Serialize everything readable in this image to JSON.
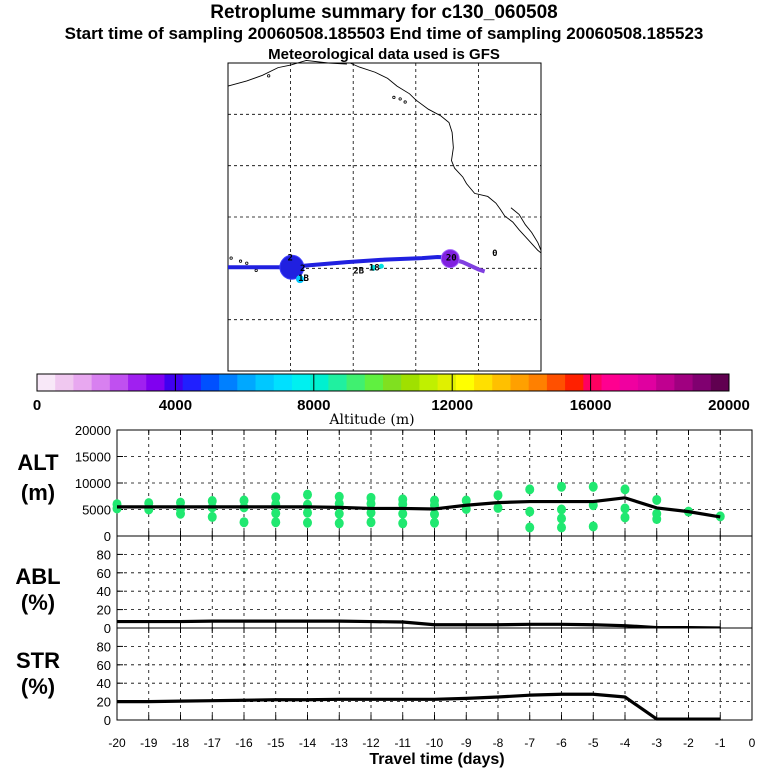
{
  "header": {
    "title": "Retroplume summary for c130_060508",
    "subtitle": "Start time of sampling 20060508.185503     End time of sampling 20060508.185523",
    "met": "Meteorological data used is GFS"
  },
  "colors": {
    "trajectory": "#2020e0",
    "trajectory_end": "#8040e0",
    "dots": "#20e870",
    "line": "#000000",
    "endpoint": "#8020e0"
  },
  "colorbar": {
    "ticks": [
      "0",
      "4000",
      "8000",
      "12000",
      "16000",
      "20000"
    ],
    "tick_values": [
      0,
      4000,
      8000,
      12000,
      16000,
      20000
    ],
    "label": "Altitude (m)",
    "colors": [
      "#f8e8f8",
      "#f0c8f0",
      "#e8a8f0",
      "#d880f0",
      "#c050f0",
      "#a020f0",
      "#8000f0",
      "#4000f0",
      "#2020ff",
      "#0050ff",
      "#0080ff",
      "#00a8ff",
      "#00c8ff",
      "#00e0ff",
      "#00f0f0",
      "#00f0d0",
      "#20f0a0",
      "#40f070",
      "#60f040",
      "#80e020",
      "#a0e000",
      "#c0f000",
      "#e0f000",
      "#ffff00",
      "#ffe000",
      "#ffc000",
      "#ffa000",
      "#ff8000",
      "#ff5000",
      "#ff2000",
      "#ff0060",
      "#ff0090",
      "#f000a0",
      "#e000a0",
      "#c00090",
      "#a00080",
      "#800070",
      "#600050"
    ]
  },
  "map": {
    "labels": [
      {
        "text": "2",
        "lon": -150.5,
        "lat": 21.5
      },
      {
        "text": "2",
        "lon": -148.5,
        "lat": 19.5
      },
      {
        "text": "1B",
        "lon": -148.8,
        "lat": 17.5
      },
      {
        "text": "2B",
        "lon": -140.0,
        "lat": 19.0
      },
      {
        "text": "18",
        "lon": -137.5,
        "lat": 19.6
      },
      {
        "text": "20",
        "lon": -125.2,
        "lat": 21.5
      },
      {
        "text": "0",
        "lon": -117.8,
        "lat": 22.4
      }
    ]
  },
  "chart_data": [
    {
      "type": "line",
      "panel": "ALT",
      "ylabel": "ALT\n(m)",
      "ylabel_lines": [
        "ALT",
        "(m)"
      ],
      "ylim": [
        0,
        20000
      ],
      "yticks": [
        "0",
        "5000",
        "10000",
        "15000",
        "20000"
      ],
      "ytick_values": [
        0,
        5000,
        10000,
        15000,
        20000
      ],
      "x": [
        -20,
        -19,
        -18,
        -17,
        -16,
        -15,
        -14,
        -13,
        -12,
        -11,
        -10,
        -9,
        -8,
        -7,
        -6,
        -5,
        -4,
        -3,
        -2,
        -1
      ],
      "y": [
        5500,
        5500,
        5500,
        5500,
        5500,
        5500,
        5500,
        5400,
        5200,
        5200,
        5100,
        5800,
        6300,
        6500,
        6500,
        6500,
        7200,
        5300,
        4600,
        3600
      ],
      "dots": [
        {
          "x": -20,
          "y": 6000
        },
        {
          "x": -20,
          "y": 5200
        },
        {
          "x": -19,
          "y": 6200
        },
        {
          "x": -19,
          "y": 5000
        },
        {
          "x": -18,
          "y": 6300
        },
        {
          "x": -18,
          "y": 5100
        },
        {
          "x": -18,
          "y": 4200
        },
        {
          "x": -17,
          "y": 6600
        },
        {
          "x": -17,
          "y": 5400
        },
        {
          "x": -17,
          "y": 3600
        },
        {
          "x": -16,
          "y": 6700
        },
        {
          "x": -16,
          "y": 5400
        },
        {
          "x": -16,
          "y": 2600
        },
        {
          "x": -15,
          "y": 7300
        },
        {
          "x": -15,
          "y": 6000
        },
        {
          "x": -15,
          "y": 4300
        },
        {
          "x": -15,
          "y": 2600
        },
        {
          "x": -14,
          "y": 7800
        },
        {
          "x": -14,
          "y": 5900
        },
        {
          "x": -14,
          "y": 4400
        },
        {
          "x": -14,
          "y": 2500
        },
        {
          "x": -13,
          "y": 7400
        },
        {
          "x": -13,
          "y": 6100
        },
        {
          "x": -13,
          "y": 4200
        },
        {
          "x": -13,
          "y": 2400
        },
        {
          "x": -12,
          "y": 7200
        },
        {
          "x": -12,
          "y": 6100
        },
        {
          "x": -12,
          "y": 4400
        },
        {
          "x": -12,
          "y": 2600
        },
        {
          "x": -11,
          "y": 6900
        },
        {
          "x": -11,
          "y": 6000
        },
        {
          "x": -11,
          "y": 4200
        },
        {
          "x": -11,
          "y": 2400
        },
        {
          "x": -10,
          "y": 6700
        },
        {
          "x": -10,
          "y": 5800
        },
        {
          "x": -10,
          "y": 4100
        },
        {
          "x": -10,
          "y": 2500
        },
        {
          "x": -9,
          "y": 6700
        },
        {
          "x": -9,
          "y": 5100
        },
        {
          "x": -8,
          "y": 7700
        },
        {
          "x": -8,
          "y": 5300
        },
        {
          "x": -7,
          "y": 8800
        },
        {
          "x": -7,
          "y": 4600
        },
        {
          "x": -7,
          "y": 1600
        },
        {
          "x": -6,
          "y": 9300
        },
        {
          "x": -6,
          "y": 5000
        },
        {
          "x": -6,
          "y": 3300
        },
        {
          "x": -6,
          "y": 1600
        },
        {
          "x": -5,
          "y": 9300
        },
        {
          "x": -5,
          "y": 5800
        },
        {
          "x": -5,
          "y": 1800
        },
        {
          "x": -4,
          "y": 8800
        },
        {
          "x": -4,
          "y": 5200
        },
        {
          "x": -4,
          "y": 3500
        },
        {
          "x": -3,
          "y": 6800
        },
        {
          "x": -3,
          "y": 4200
        },
        {
          "x": -3,
          "y": 3200
        },
        {
          "x": -2,
          "y": 4600
        },
        {
          "x": -1,
          "y": 3700
        }
      ]
    },
    {
      "type": "line",
      "panel": "ABL",
      "ylabel_lines": [
        "ABL",
        "(%)"
      ],
      "ylim": [
        0,
        100
      ],
      "yticks": [
        "0",
        "20",
        "40",
        "60",
        "80"
      ],
      "ytick_values": [
        0,
        20,
        40,
        60,
        80
      ],
      "x": [
        -20,
        -19,
        -18,
        -17,
        -16,
        -15,
        -14,
        -13,
        -12,
        -11,
        -10,
        -9,
        -8,
        -7,
        -6,
        -5,
        -4,
        -3,
        -2,
        -1
      ],
      "y": [
        7,
        7,
        7,
        7.5,
        7.5,
        7.5,
        7.5,
        7.5,
        7,
        6.5,
        3.5,
        3.5,
        3.5,
        4,
        4,
        3.5,
        2.5,
        0.5,
        0.5,
        0
      ]
    },
    {
      "type": "line",
      "panel": "STR",
      "ylabel_lines": [
        "STR",
        "(%)"
      ],
      "ylim": [
        0,
        100
      ],
      "yticks": [
        "0",
        "20",
        "40",
        "60",
        "80"
      ],
      "ytick_values": [
        0,
        20,
        40,
        60,
        80
      ],
      "x": [
        -20,
        -19,
        -18,
        -17,
        -16,
        -15,
        -14,
        -13,
        -12,
        -11,
        -10,
        -9,
        -8,
        -7,
        -6,
        -5,
        -4,
        -3,
        -2,
        -1
      ],
      "y": [
        20,
        20,
        20.5,
        21,
        21.5,
        22,
        22,
        22.5,
        22.5,
        22.5,
        22.5,
        23.5,
        25,
        27,
        28,
        28,
        25,
        1,
        1,
        1
      ]
    }
  ],
  "xaxis": {
    "ticks": [
      "-20",
      "-19",
      "-18",
      "-17",
      "-16",
      "-15",
      "-14",
      "-13",
      "-12",
      "-11",
      "-10",
      "-9",
      "-8",
      "-7",
      "-6",
      "-5",
      "-4",
      "-3",
      "-2",
      "-1",
      "0"
    ],
    "tick_values": [
      -20,
      -19,
      -18,
      -17,
      -16,
      -15,
      -14,
      -13,
      -12,
      -11,
      -10,
      -9,
      -8,
      -7,
      -6,
      -5,
      -4,
      -3,
      -2,
      -1,
      0
    ],
    "label": "Travel time (days)",
    "xlim": [
      -20,
      0
    ]
  }
}
